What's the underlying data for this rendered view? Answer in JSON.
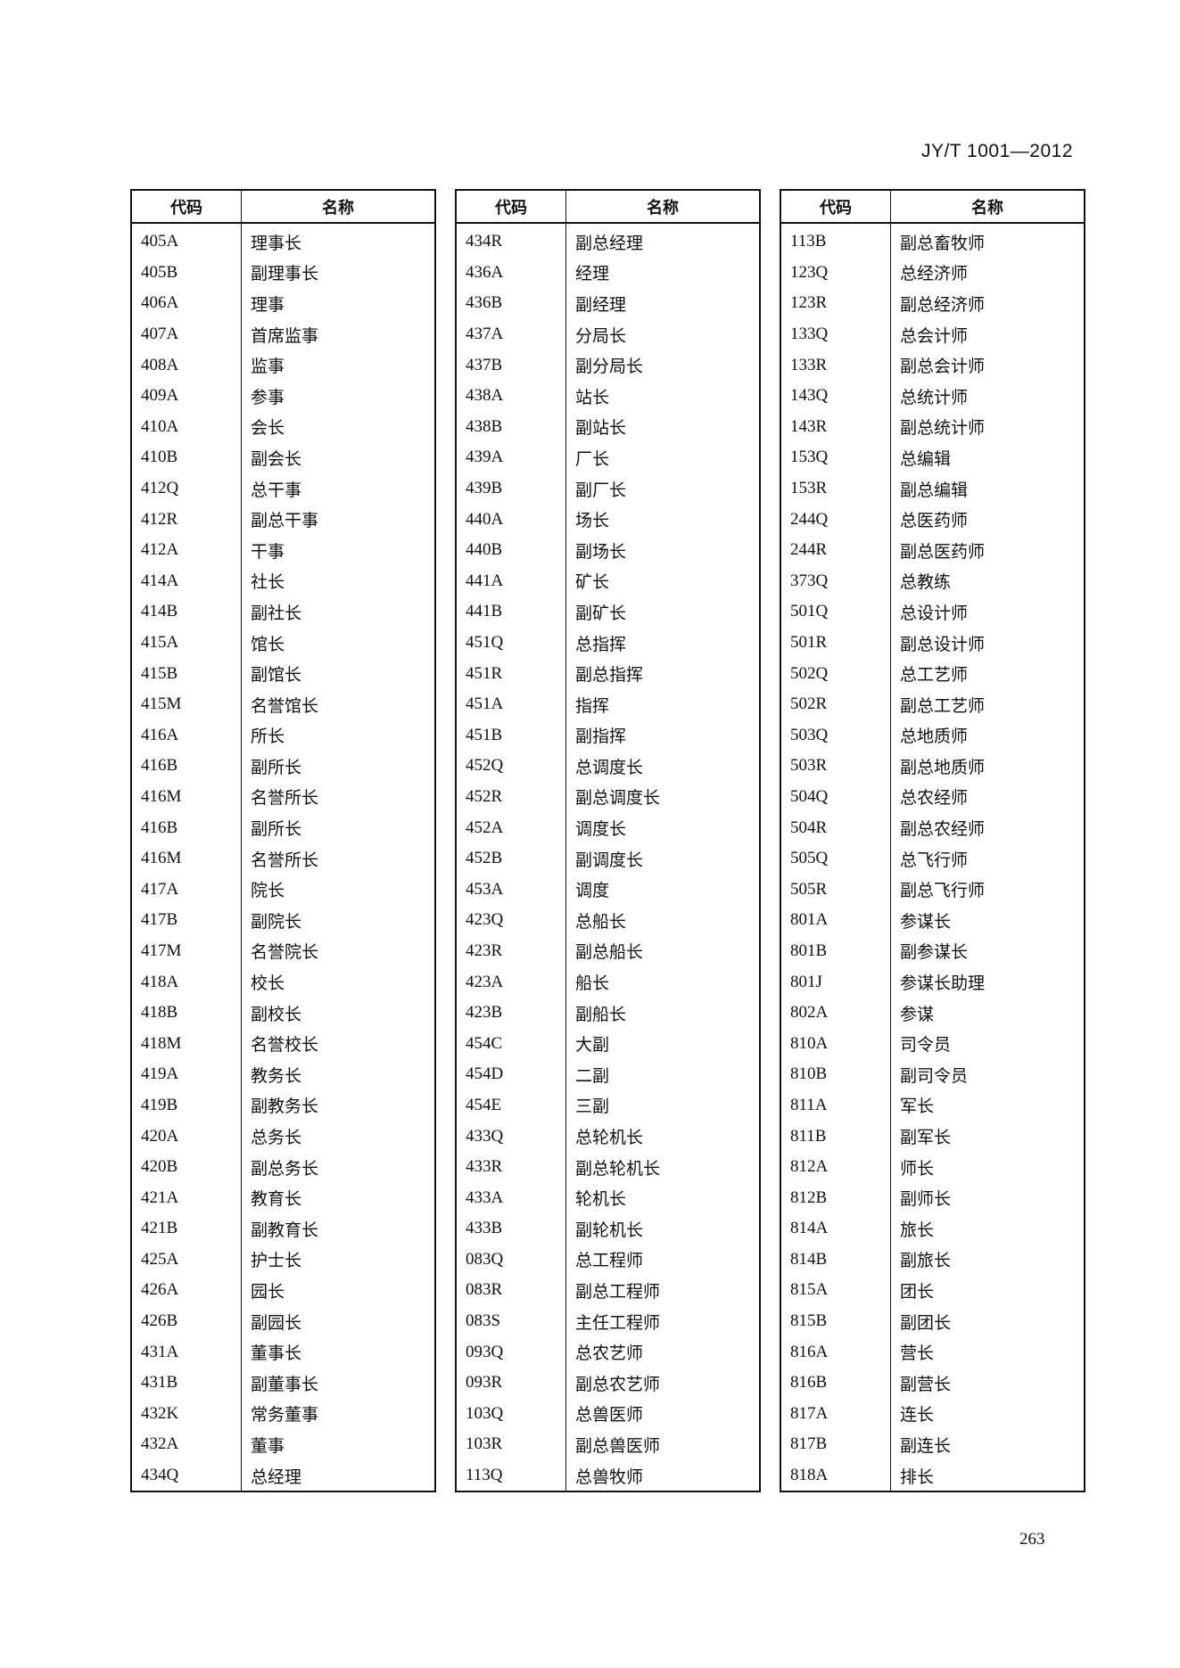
{
  "header": {
    "standard_code": "JY/T 1001—2012"
  },
  "page_number": "263",
  "table": {
    "columns": [
      "代码",
      "名称"
    ],
    "groups": [
      [
        [
          "405A",
          "理事长"
        ],
        [
          "405B",
          "副理事长"
        ],
        [
          "406A",
          "理事"
        ],
        [
          "407A",
          "首席监事"
        ],
        [
          "408A",
          "监事"
        ],
        [
          "409A",
          "参事"
        ],
        [
          "410A",
          "会长"
        ],
        [
          "410B",
          "副会长"
        ],
        [
          "412Q",
          "总干事"
        ],
        [
          "412R",
          "副总干事"
        ],
        [
          "412A",
          "干事"
        ],
        [
          "414A",
          "社长"
        ],
        [
          "414B",
          "副社长"
        ],
        [
          "415A",
          "馆长"
        ],
        [
          "415B",
          "副馆长"
        ],
        [
          "415M",
          "名誉馆长"
        ],
        [
          "416A",
          "所长"
        ],
        [
          "416B",
          "副所长"
        ],
        [
          "416M",
          "名誉所长"
        ],
        [
          "416B",
          "副所长"
        ],
        [
          "416M",
          "名誉所长"
        ],
        [
          "417A",
          "院长"
        ],
        [
          "417B",
          "副院长"
        ],
        [
          "417M",
          "名誉院长"
        ],
        [
          "418A",
          "校长"
        ],
        [
          "418B",
          "副校长"
        ],
        [
          "418M",
          "名誉校长"
        ],
        [
          "419A",
          "教务长"
        ],
        [
          "419B",
          "副教务长"
        ],
        [
          "420A",
          "总务长"
        ],
        [
          "420B",
          "副总务长"
        ],
        [
          "421A",
          "教育长"
        ],
        [
          "421B",
          "副教育长"
        ],
        [
          "425A",
          "护士长"
        ],
        [
          "426A",
          "园长"
        ],
        [
          "426B",
          "副园长"
        ],
        [
          "431A",
          "董事长"
        ],
        [
          "431B",
          "副董事长"
        ],
        [
          "432K",
          "常务董事"
        ],
        [
          "432A",
          "董事"
        ],
        [
          "434Q",
          "总经理"
        ]
      ],
      [
        [
          "434R",
          "副总经理"
        ],
        [
          "436A",
          "经理"
        ],
        [
          "436B",
          "副经理"
        ],
        [
          "437A",
          "分局长"
        ],
        [
          "437B",
          "副分局长"
        ],
        [
          "438A",
          "站长"
        ],
        [
          "438B",
          "副站长"
        ],
        [
          "439A",
          "厂长"
        ],
        [
          "439B",
          "副厂长"
        ],
        [
          "440A",
          "场长"
        ],
        [
          "440B",
          "副场长"
        ],
        [
          "441A",
          "矿长"
        ],
        [
          "441B",
          "副矿长"
        ],
        [
          "451Q",
          "总指挥"
        ],
        [
          "451R",
          "副总指挥"
        ],
        [
          "451A",
          "指挥"
        ],
        [
          "451B",
          "副指挥"
        ],
        [
          "452Q",
          "总调度长"
        ],
        [
          "452R",
          "副总调度长"
        ],
        [
          "452A",
          "调度长"
        ],
        [
          "452B",
          "副调度长"
        ],
        [
          "453A",
          "调度"
        ],
        [
          "423Q",
          "总船长"
        ],
        [
          "423R",
          "副总船长"
        ],
        [
          "423A",
          "船长"
        ],
        [
          "423B",
          "副船长"
        ],
        [
          "454C",
          "大副"
        ],
        [
          "454D",
          "二副"
        ],
        [
          "454E",
          "三副"
        ],
        [
          "433Q",
          "总轮机长"
        ],
        [
          "433R",
          "副总轮机长"
        ],
        [
          "433A",
          "轮机长"
        ],
        [
          "433B",
          "副轮机长"
        ],
        [
          "083Q",
          "总工程师"
        ],
        [
          "083R",
          "副总工程师"
        ],
        [
          "083S",
          "主任工程师"
        ],
        [
          "093Q",
          "总农艺师"
        ],
        [
          "093R",
          "副总农艺师"
        ],
        [
          "103Q",
          "总兽医师"
        ],
        [
          "103R",
          "副总兽医师"
        ],
        [
          "113Q",
          "总兽牧师"
        ]
      ],
      [
        [
          "113B",
          "副总畜牧师"
        ],
        [
          "123Q",
          "总经济师"
        ],
        [
          "123R",
          "副总经济师"
        ],
        [
          "133Q",
          "总会计师"
        ],
        [
          "133R",
          "副总会计师"
        ],
        [
          "143Q",
          "总统计师"
        ],
        [
          "143R",
          "副总统计师"
        ],
        [
          "153Q",
          "总编辑"
        ],
        [
          "153R",
          "副总编辑"
        ],
        [
          "244Q",
          "总医药师"
        ],
        [
          "244R",
          "副总医药师"
        ],
        [
          "373Q",
          "总教练"
        ],
        [
          "501Q",
          "总设计师"
        ],
        [
          "501R",
          "副总设计师"
        ],
        [
          "502Q",
          "总工艺师"
        ],
        [
          "502R",
          "副总工艺师"
        ],
        [
          "503Q",
          "总地质师"
        ],
        [
          "503R",
          "副总地质师"
        ],
        [
          "504Q",
          "总农经师"
        ],
        [
          "504R",
          "副总农经师"
        ],
        [
          "505Q",
          "总飞行师"
        ],
        [
          "505R",
          "副总飞行师"
        ],
        [
          "801A",
          "参谋长"
        ],
        [
          "801B",
          "副参谋长"
        ],
        [
          "801J",
          "参谋长助理"
        ],
        [
          "802A",
          "参谋"
        ],
        [
          "810A",
          "司令员"
        ],
        [
          "810B",
          "副司令员"
        ],
        [
          "811A",
          "军长"
        ],
        [
          "811B",
          "副军长"
        ],
        [
          "812A",
          "师长"
        ],
        [
          "812B",
          "副师长"
        ],
        [
          "814A",
          "旅长"
        ],
        [
          "814B",
          "副旅长"
        ],
        [
          "815A",
          "团长"
        ],
        [
          "815B",
          "副团长"
        ],
        [
          "816A",
          "营长"
        ],
        [
          "816B",
          "副营长"
        ],
        [
          "817A",
          "连长"
        ],
        [
          "817B",
          "副连长"
        ],
        [
          "818A",
          "排长"
        ]
      ]
    ]
  }
}
